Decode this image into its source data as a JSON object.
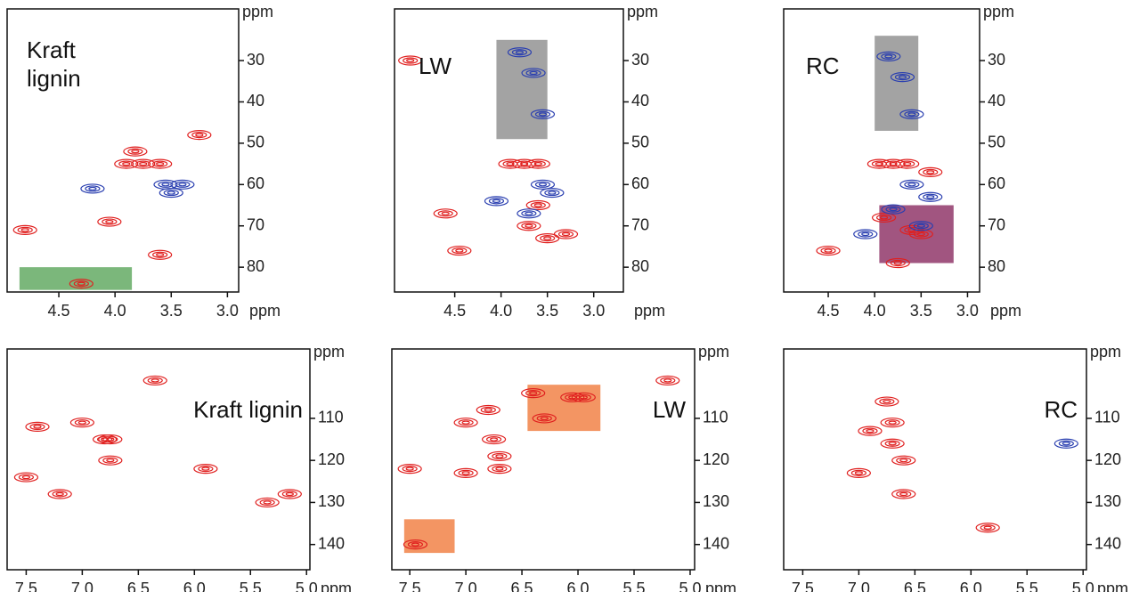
{
  "chart_data": [
    {
      "type": "contour",
      "title": "Kraft lignin",
      "xlabel": "ppm",
      "ylabel": "ppm",
      "xlim": [
        4.96,
        2.9
      ],
      "ylim": [
        86,
        17.5
      ],
      "xticks": [
        4.5,
        {
          "value": 4,
          "label": "4.0"
        },
        3.5,
        {
          "value": 3,
          "label": "3.0"
        }
      ],
      "yticks": [
        30,
        40,
        50,
        60,
        70,
        80
      ],
      "series": [
        {
          "color": "#e0201f",
          "x": [
            3.9,
            3.75,
            3.6,
            3.25,
            4.8,
            4.05,
            3.82,
            4.3,
            3.6
          ],
          "values": [
            55,
            55,
            55,
            48,
            71,
            69,
            52,
            84,
            77
          ]
        },
        {
          "color": "#2a3fb0",
          "x": [
            3.55,
            3.4,
            3.5,
            4.2
          ],
          "values": [
            60,
            60,
            62,
            61
          ]
        }
      ],
      "regions": [
        {
          "x_range": [
            4.85,
            3.85
          ],
          "y_range": [
            80,
            85.5
          ],
          "color": "#5aa55a"
        }
      ]
    },
    {
      "type": "contour",
      "title": "LW",
      "xlabel": "ppm",
      "ylabel": "ppm",
      "xlim": [
        5.15,
        2.68
      ],
      "ylim": [
        86,
        17.5
      ],
      "xticks": [
        4.5,
        {
          "value": 4,
          "label": "4.0"
        },
        3.5,
        {
          "value": 3,
          "label": "3.0"
        }
      ],
      "yticks": [
        30,
        40,
        50,
        60,
        70,
        80
      ],
      "series": [
        {
          "color": "#e0201f",
          "x": [
            3.9,
            3.75,
            3.6,
            4.98,
            4.6,
            4.45,
            3.6,
            3.5,
            3.3,
            3.7
          ],
          "values": [
            55,
            55,
            55,
            30,
            67,
            76,
            65,
            73,
            72,
            70
          ]
        },
        {
          "color": "#2a3fb0",
          "x": [
            3.8,
            3.65,
            3.55,
            3.55,
            3.45,
            4.05,
            3.7
          ],
          "values": [
            28,
            33,
            43,
            60,
            62,
            64,
            67
          ]
        }
      ],
      "regions": [
        {
          "x_range": [
            4.05,
            3.5
          ],
          "y_range": [
            25,
            49
          ],
          "color": "#8c8c8c"
        }
      ]
    },
    {
      "type": "contour",
      "title": "RC",
      "xlabel": "ppm",
      "ylabel": "ppm",
      "xlim": [
        4.98,
        2.87
      ],
      "ylim": [
        86,
        17.5
      ],
      "xticks": [
        4.5,
        {
          "value": 4,
          "label": "4.0"
        },
        3.5,
        {
          "value": 3,
          "label": "3.0"
        }
      ],
      "yticks": [
        30,
        40,
        50,
        60,
        70,
        80
      ],
      "series": [
        {
          "color": "#e0201f",
          "x": [
            3.95,
            3.8,
            3.65,
            3.4,
            3.6,
            3.9,
            3.5,
            3.75,
            4.5
          ],
          "values": [
            55,
            55,
            55,
            57,
            71,
            68,
            72,
            79,
            76
          ]
        },
        {
          "color": "#2a3fb0",
          "x": [
            3.85,
            3.7,
            3.6,
            3.6,
            3.4,
            3.8,
            3.5,
            4.1
          ],
          "values": [
            29,
            34,
            43,
            60,
            63,
            66,
            70,
            72
          ]
        }
      ],
      "regions": [
        {
          "x_range": [
            4.0,
            3.53
          ],
          "y_range": [
            24,
            47
          ],
          "color": "#8c8c8c"
        },
        {
          "x_range": [
            3.95,
            3.15
          ],
          "y_range": [
            65,
            79
          ],
          "color": "#8a2a60"
        }
      ]
    },
    {
      "type": "contour",
      "title": "Kraft lignin",
      "xlabel": "ppm",
      "ylabel": "ppm",
      "xlim": [
        7.67,
        4.97
      ],
      "ylim": [
        146,
        93.5
      ],
      "xticks": [
        7.5,
        {
          "value": 7,
          "label": "7.0"
        },
        6.5,
        {
          "value": 6,
          "label": "6.0"
        },
        5.5,
        {
          "value": 5,
          "label": "5.0"
        }
      ],
      "yticks": [
        110,
        120,
        130,
        140
      ],
      "series": [
        {
          "color": "#e0201f",
          "x": [
            7.0,
            6.8,
            6.75,
            6.75,
            7.4,
            7.5,
            7.2,
            6.35,
            5.35,
            5.15,
            5.9
          ],
          "values": [
            111,
            115,
            115,
            120,
            112,
            124,
            128,
            101,
            130,
            128,
            122
          ]
        }
      ],
      "regions": []
    },
    {
      "type": "contour",
      "title": "LW",
      "xlabel": "ppm",
      "ylabel": "ppm",
      "xlim": [
        7.66,
        4.96
      ],
      "ylim": [
        146,
        93.5
      ],
      "xticks": [
        7.5,
        {
          "value": 7,
          "label": "7.0"
        },
        6.5,
        {
          "value": 6,
          "label": "6.0"
        },
        5.5,
        {
          "value": 5,
          "label": "5.0"
        }
      ],
      "yticks": [
        110,
        120,
        130,
        140
      ],
      "series": [
        {
          "color": "#e0201f",
          "x": [
            7.0,
            6.8,
            6.75,
            6.7,
            6.7,
            7.5,
            7.0,
            6.4,
            6.3,
            6.05,
            5.95,
            5.2,
            7.45
          ],
          "values": [
            111,
            108,
            115,
            119,
            122,
            122,
            123,
            104,
            110,
            105,
            105,
            101,
            140
          ]
        }
      ],
      "regions": [
        {
          "x_range": [
            6.45,
            5.8
          ],
          "y_range": [
            102,
            113
          ],
          "color": "#f07a3c"
        },
        {
          "x_range": [
            7.55,
            7.1
          ],
          "y_range": [
            134,
            142
          ],
          "color": "#f07a3c"
        }
      ]
    },
    {
      "type": "contour",
      "title": "RC",
      "xlabel": "ppm",
      "ylabel": "ppm",
      "xlim": [
        7.67,
        4.97
      ],
      "ylim": [
        146,
        93.5
      ],
      "xticks": [
        7.5,
        {
          "value": 7,
          "label": "7.0"
        },
        6.5,
        {
          "value": 6,
          "label": "6.0"
        },
        5.5,
        {
          "value": 5,
          "label": "5.0"
        }
      ],
      "yticks": [
        110,
        120,
        130,
        140
      ],
      "series": [
        {
          "color": "#e0201f",
          "x": [
            6.9,
            6.75,
            6.7,
            6.7,
            6.6,
            7.0,
            6.6,
            5.85
          ],
          "values": [
            113,
            106,
            111,
            116,
            120,
            123,
            128,
            136
          ]
        },
        {
          "color": "#2a3fb0",
          "x": [
            5.15
          ],
          "values": [
            116
          ]
        }
      ],
      "regions": []
    }
  ]
}
